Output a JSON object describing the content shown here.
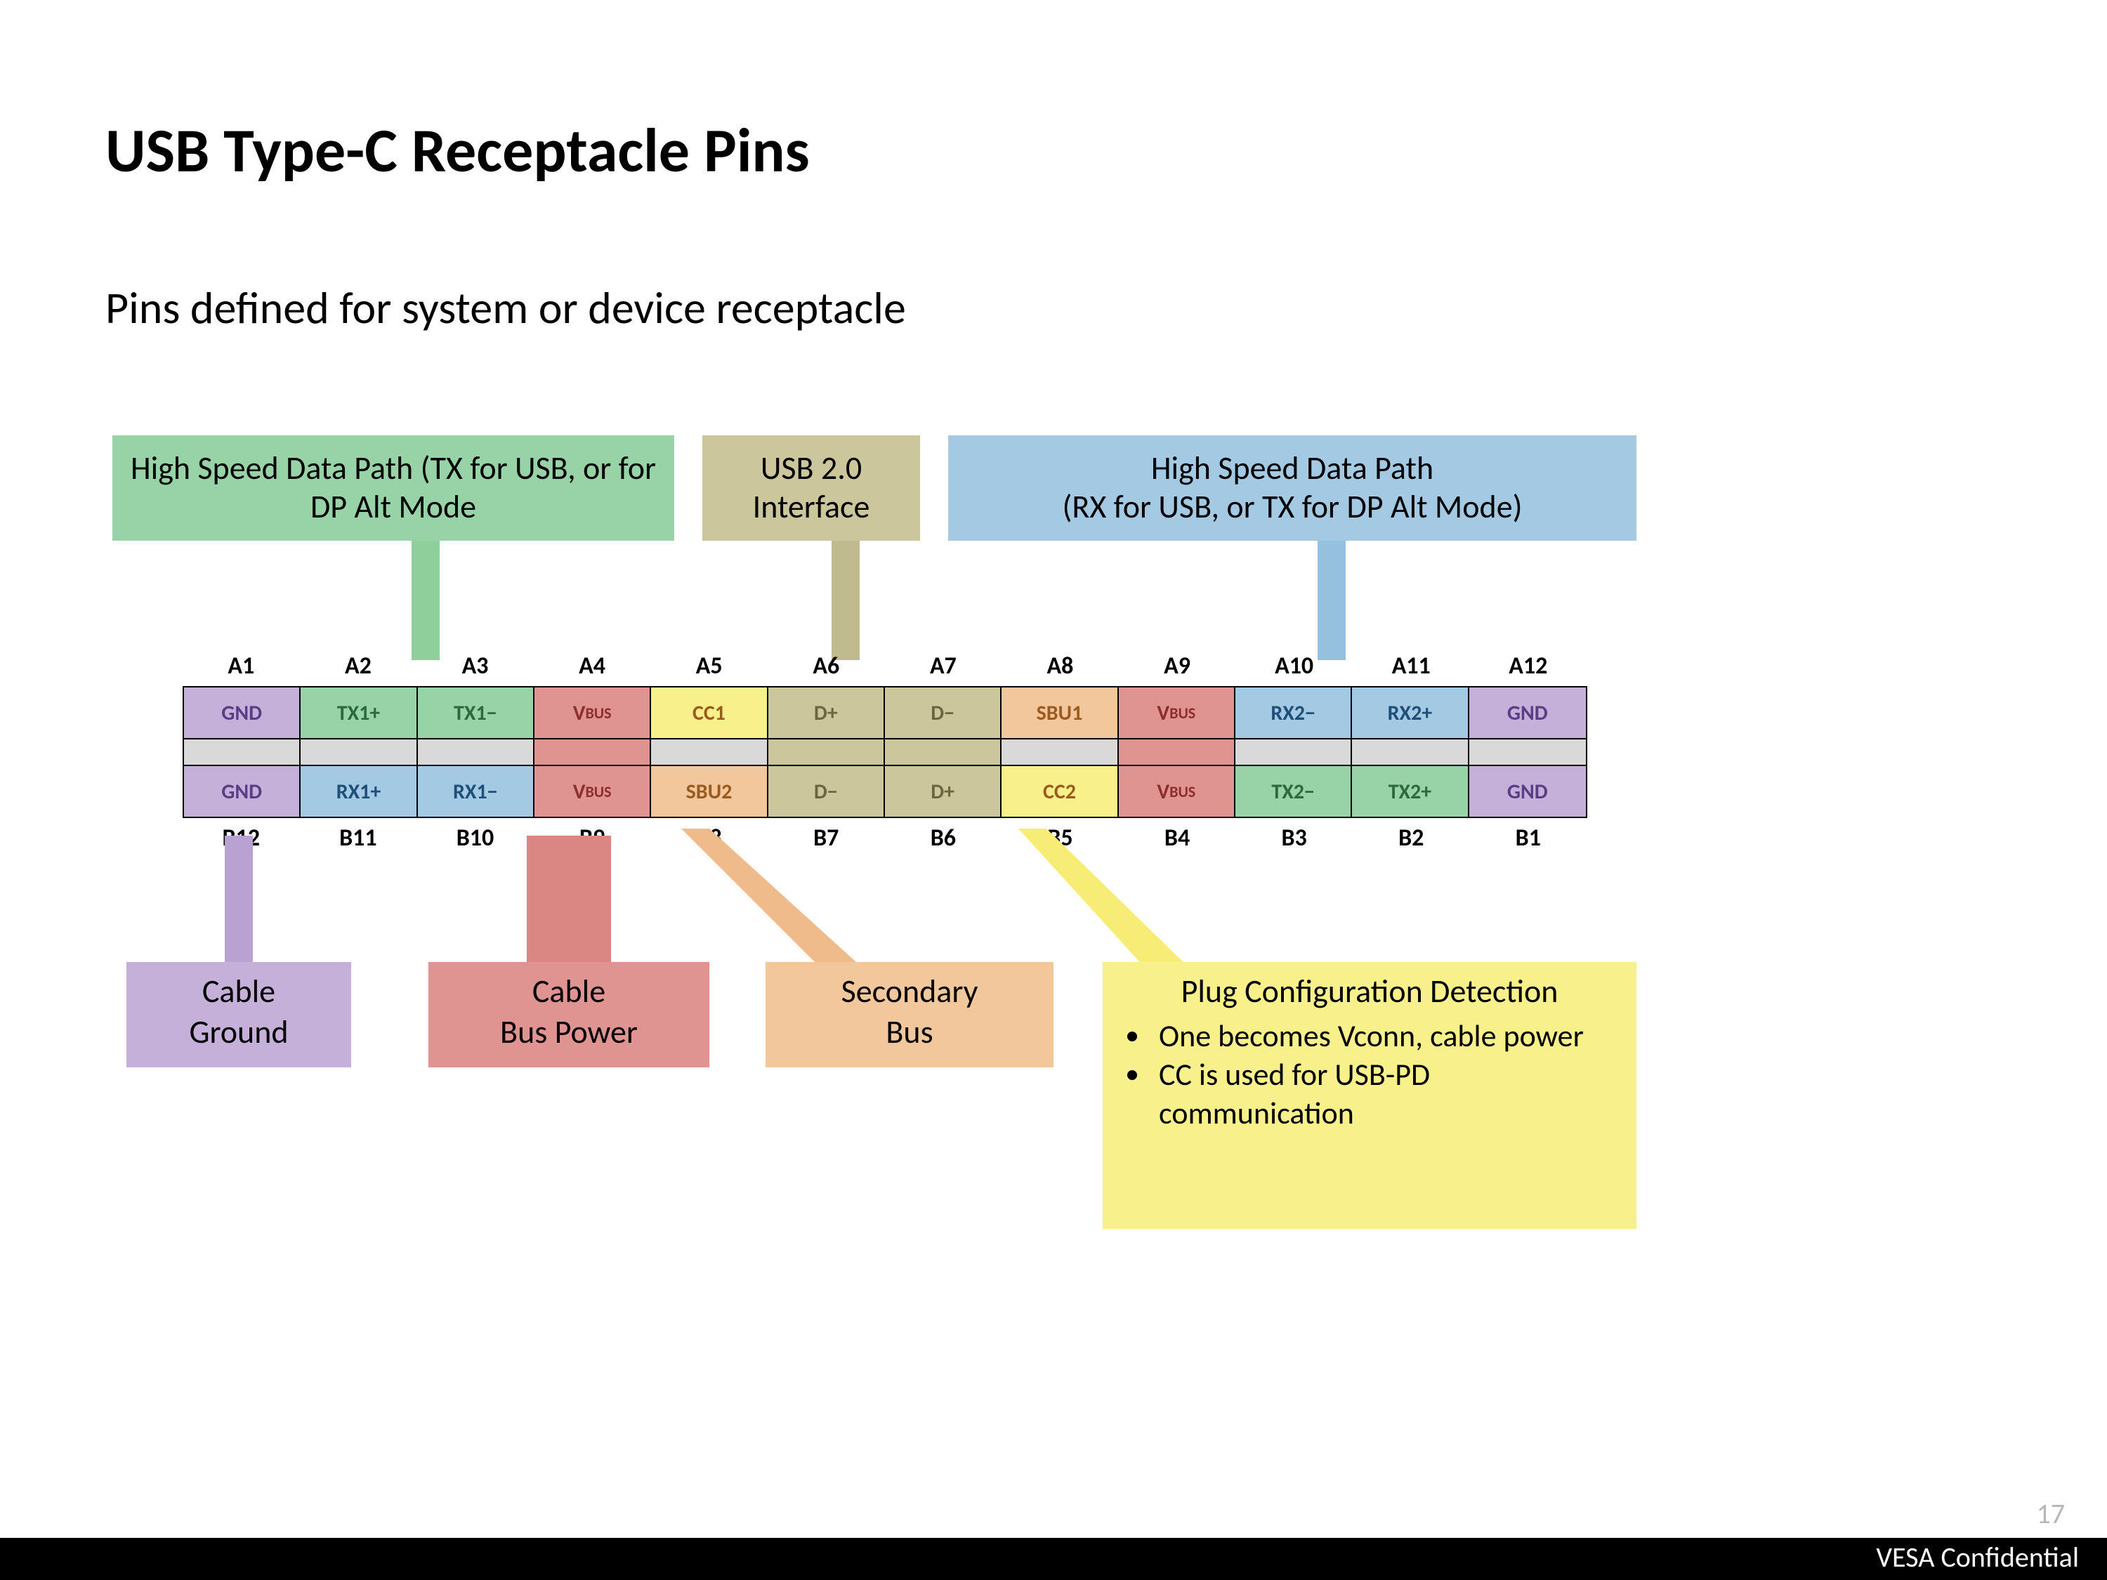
{
  "title": "USB Type-C Receptacle Pins",
  "subtitle": "Pins defined for system or device receptacle",
  "page_number": "17",
  "footer": "VESA Confidential",
  "colors": {
    "green": "#97d3a7",
    "tan": "#cbc69b",
    "blue": "#a3c9e3",
    "purple": "#c4b0d8",
    "red": "#df9492",
    "yellow": "#f8f08b",
    "peach": "#f3c79c",
    "graygap": "#d9d9d9",
    "green_conn": "#8ecf9c",
    "tan_conn": "#c0bb8f",
    "blue_conn": "#95c0de",
    "purple_conn": "#b9a2d2",
    "red_conn": "#da8683",
    "peach_conn": "#f0bb8a",
    "yellow_conn": "#f7ed76",
    "text_green": "#2b6a3d",
    "text_blue": "#1f4e79",
    "text_purple": "#5b3d85",
    "text_red": "#8b2e2c",
    "text_peach": "#9b5b1f",
    "text_tan": "#6b6640"
  },
  "callouts_top": [
    {
      "id": "hs-tx",
      "text": "High Speed Data Path (TX for USB, or for DP Alt Mode"
    },
    {
      "id": "usb2",
      "text": "USB 2.0 Interface"
    },
    {
      "id": "hs-rx",
      "text": "High Speed Data Path\n(RX for USB, or TX for DP Alt Mode)"
    }
  ],
  "labels_top": [
    "A1",
    "A2",
    "A3",
    "A4",
    "A5",
    "A6",
    "A7",
    "A8",
    "A9",
    "A10",
    "A11",
    "A12"
  ],
  "labels_bottom": [
    "B12",
    "B11",
    "B10",
    "B9",
    "B8",
    "B7",
    "B6",
    "B5",
    "B4",
    "B3",
    "B2",
    "B1"
  ],
  "row_a": [
    {
      "t": "GND",
      "c": "purple",
      "tc": "text_purple"
    },
    {
      "t": "TX1+",
      "c": "green",
      "tc": "text_green"
    },
    {
      "t": "TX1−",
      "c": "green",
      "tc": "text_green"
    },
    {
      "t": "VBUS",
      "c": "red",
      "tc": "text_red",
      "small": true
    },
    {
      "t": "CC1",
      "c": "yellow",
      "tc": "text_peach"
    },
    {
      "t": "D+",
      "c": "tan",
      "tc": "text_tan"
    },
    {
      "t": "D−",
      "c": "tan",
      "tc": "text_tan"
    },
    {
      "t": "SBU1",
      "c": "peach",
      "tc": "text_peach"
    },
    {
      "t": "VBUS",
      "c": "red",
      "tc": "text_red",
      "small": true
    },
    {
      "t": "RX2−",
      "c": "blue",
      "tc": "text_blue"
    },
    {
      "t": "RX2+",
      "c": "blue",
      "tc": "text_blue"
    },
    {
      "t": "GND",
      "c": "purple",
      "tc": "text_purple"
    }
  ],
  "row_b": [
    {
      "t": "GND",
      "c": "purple",
      "tc": "text_purple"
    },
    {
      "t": "RX1+",
      "c": "blue",
      "tc": "text_blue"
    },
    {
      "t": "RX1−",
      "c": "blue",
      "tc": "text_blue"
    },
    {
      "t": "VBUS",
      "c": "red",
      "tc": "text_red",
      "small": true
    },
    {
      "t": "SBU2",
      "c": "peach",
      "tc": "text_peach"
    },
    {
      "t": "D−",
      "c": "tan",
      "tc": "text_tan"
    },
    {
      "t": "D+",
      "c": "tan",
      "tc": "text_tan"
    },
    {
      "t": "CC2",
      "c": "yellow",
      "tc": "text_peach"
    },
    {
      "t": "VBUS",
      "c": "red",
      "tc": "text_red",
      "small": true
    },
    {
      "t": "TX2−",
      "c": "green",
      "tc": "text_green"
    },
    {
      "t": "TX2+",
      "c": "green",
      "tc": "text_green"
    },
    {
      "t": "GND",
      "c": "purple",
      "tc": "text_purple"
    }
  ],
  "gap_colors": [
    "graygap",
    "graygap",
    "graygap",
    "red",
    "graygap",
    "tan",
    "tan",
    "graygap",
    "red",
    "graygap",
    "graygap",
    "graygap"
  ],
  "callouts_bottom": [
    {
      "id": "cable-ground",
      "title": "Cable Ground"
    },
    {
      "id": "cable-buspower",
      "title": "Cable\nBus Power"
    },
    {
      "id": "secondary-bus",
      "title": "Secondary Bus"
    },
    {
      "id": "plug-config",
      "title": "Plug Configuration Detection",
      "bullets": [
        "One becomes Vconn, cable power",
        "CC is used for USB-PD communication"
      ]
    }
  ]
}
